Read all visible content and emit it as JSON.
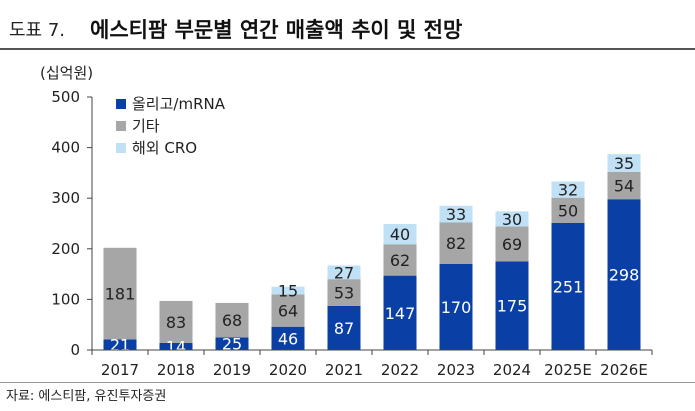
{
  "header": {
    "figure_label": "도표 7.",
    "title": "에스티팜 부문별 연간 매출액 추이 및 전망"
  },
  "unit_label": "(십억원)",
  "source": "자료: 에스티팜, 유진투자증권",
  "colors": {
    "oligo": "#0a3fa5",
    "other": "#a6a6a6",
    "cro": "#bfe0f5",
    "axis": "#444444"
  },
  "chart_data": {
    "type": "bar",
    "stacked": true,
    "categories": [
      "2017",
      "2018",
      "2019",
      "2020",
      "2021",
      "2022",
      "2023",
      "2024",
      "2025E",
      "2026E"
    ],
    "series": [
      {
        "name": "올리고/mRNA",
        "color": "#0a3fa5",
        "values": [
          21,
          14,
          25,
          46,
          87,
          147,
          170,
          175,
          251,
          298
        ]
      },
      {
        "name": "기타",
        "color": "#a6a6a6",
        "values": [
          181,
          83,
          68,
          64,
          53,
          62,
          82,
          69,
          50,
          54
        ]
      },
      {
        "name": "해외 CRO",
        "color": "#bfe0f5",
        "values": [
          null,
          null,
          null,
          15,
          27,
          40,
          33,
          30,
          32,
          35
        ]
      }
    ],
    "y_ticks": [
      0,
      100,
      200,
      300,
      400,
      500
    ],
    "ylim": [
      0,
      500
    ],
    "legend_position": "top-left",
    "grid": false
  }
}
